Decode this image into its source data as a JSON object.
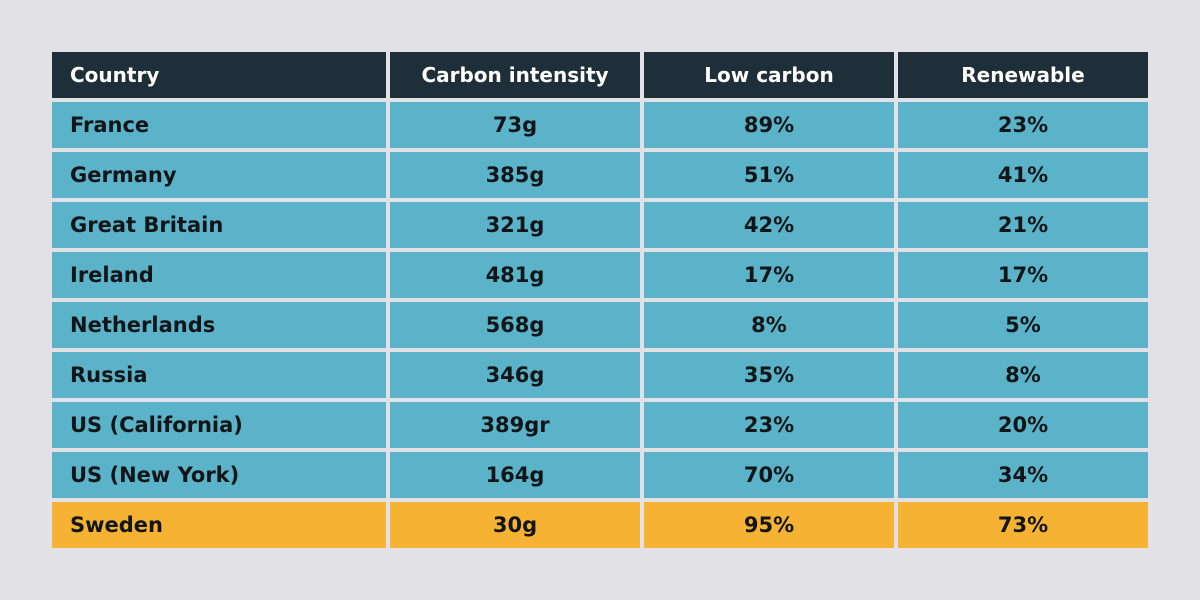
{
  "colors": {
    "background": "#e2e1e6",
    "header": "#1e2f39",
    "row": "#5ab3c8",
    "highlight": "#f6b233"
  },
  "chart_data": {
    "type": "table",
    "columns": [
      "Country",
      "Carbon intensity",
      "Low carbon",
      "Renewable"
    ],
    "rows": [
      [
        "France",
        "73g",
        "89%",
        "23%"
      ],
      [
        "Germany",
        "385g",
        "51%",
        "41%"
      ],
      [
        "Great Britain",
        "321g",
        "42%",
        "21%"
      ],
      [
        "Ireland",
        "481g",
        "17%",
        "17%"
      ],
      [
        "Netherlands",
        "568g",
        "8%",
        "5%"
      ],
      [
        "Russia",
        "346g",
        "35%",
        "8%"
      ],
      [
        "US (California)",
        "389gr",
        "23%",
        "20%"
      ],
      [
        "US (New York)",
        "164g",
        "70%",
        "34%"
      ],
      [
        "Sweden",
        "30g",
        "95%",
        "73%"
      ]
    ],
    "highlight_row": "Sweden"
  }
}
